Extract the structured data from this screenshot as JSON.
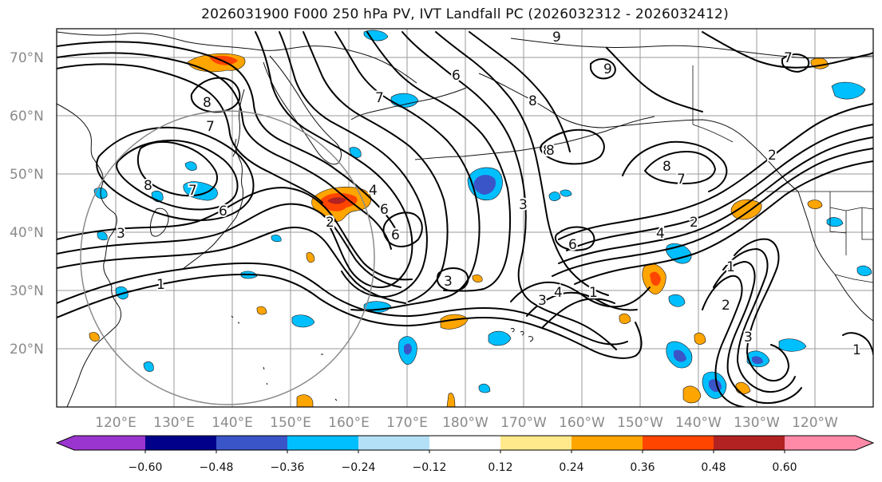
{
  "title": "2026031900 F000 250 hPa PV, IVT Landfall PC (2026032312 - 2026032412)",
  "lat_labels": [
    "70°N",
    "60°N",
    "50°N",
    "40°N",
    "30°N",
    "20°N"
  ],
  "lon_labels": [
    "120°E",
    "130°E",
    "140°E",
    "150°E",
    "160°E",
    "170°E",
    "180°W",
    "170°W",
    "160°W",
    "150°W",
    "140°W",
    "130°W",
    "120°W"
  ],
  "colorbar": {
    "tick_labels": [
      "−0.60",
      "−0.48",
      "−0.36",
      "−0.24",
      "−0.12",
      "0.12",
      "0.24",
      "0.36",
      "0.48",
      "0.60"
    ],
    "colors": [
      "#9b35cf",
      "#00008b",
      "#3a55c8",
      "#00bfff",
      "#b3e0f7",
      "#ffffff",
      "#ffe98a",
      "#ffa500",
      "#ff4500",
      "#b22222",
      "#ff8aa8"
    ]
  },
  "contour_labels": {
    "l9": "9",
    "l6a": "6",
    "l7a": "7",
    "l8a": "8",
    "l8b": "8",
    "l7b": "7",
    "l8c": "8",
    "l7c": "7",
    "l6b": "6",
    "l3a": "3",
    "l1a": "1",
    "l8d": "8",
    "l7d": "7",
    "l6c": "6",
    "l4a": "4",
    "l6d": "6",
    "l3b": "3",
    "l2a": "2",
    "l6e": "6",
    "l3c": "3",
    "l4b": "4",
    "l3d": "3",
    "l1b": "1",
    "l8e": "8",
    "l7e": "7",
    "l2b": "2",
    "l1c": "1",
    "l2c": "2",
    "l4c": "4",
    "l3e": "3",
    "l2d": "2",
    "l1d": "1",
    "l8f": "8",
    "l9b": "9"
  }
}
